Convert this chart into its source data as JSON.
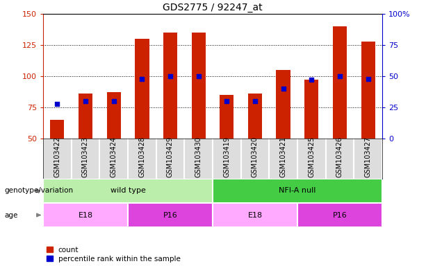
{
  "title": "GDS2775 / 92247_at",
  "samples": [
    "GSM103422",
    "GSM103423",
    "GSM103424",
    "GSM103428",
    "GSM103429",
    "GSM103430",
    "GSM103419",
    "GSM103420",
    "GSM103421",
    "GSM103425",
    "GSM103426",
    "GSM103427"
  ],
  "counts": [
    65,
    86,
    87,
    130,
    135,
    135,
    85,
    86,
    105,
    97,
    140,
    128
  ],
  "percentiles": [
    28,
    30,
    30,
    48,
    50,
    50,
    30,
    30,
    40,
    47,
    50,
    48
  ],
  "ylim_left": [
    50,
    150
  ],
  "ylim_right": [
    0,
    100
  ],
  "yticks_left": [
    50,
    75,
    100,
    125,
    150
  ],
  "yticks_right": [
    0,
    25,
    50,
    75,
    100
  ],
  "yticklabels_right": [
    "0",
    "25",
    "50",
    "75",
    "100%"
  ],
  "bar_color": "#cc2200",
  "dot_color": "#0000cc",
  "bar_bottom": 50,
  "grid_values": [
    75,
    100,
    125
  ],
  "genotype_groups": [
    {
      "label": "wild type",
      "start": 0,
      "end": 6,
      "color": "#bbeeaa"
    },
    {
      "label": "NFI-A null",
      "start": 6,
      "end": 12,
      "color": "#44cc44"
    }
  ],
  "age_groups": [
    {
      "label": "E18",
      "start": 0,
      "end": 3,
      "color": "#ffaaff"
    },
    {
      "label": "P16",
      "start": 3,
      "end": 6,
      "color": "#dd44dd"
    },
    {
      "label": "E18",
      "start": 6,
      "end": 9,
      "color": "#ffaaff"
    },
    {
      "label": "P16",
      "start": 9,
      "end": 12,
      "color": "#dd44dd"
    }
  ],
  "legend_count_label": "count",
  "legend_percentile_label": "percentile rank within the sample",
  "genotype_label": "genotype/variation",
  "age_label": "age",
  "tick_color_left": "#cc2200",
  "tick_color_right": "#0000cc",
  "sample_area_color": "#dddddd",
  "background_color": "#ffffff"
}
